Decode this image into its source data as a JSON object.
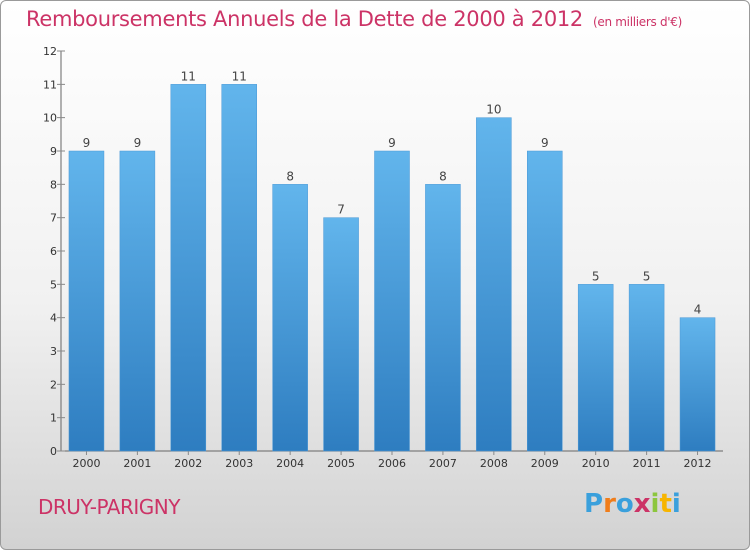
{
  "title": "Remboursements Annuels de la Dette de 2000 à 2012",
  "unit": "(en milliers d'€)",
  "city": "DRUY-PARIGNY",
  "logo": {
    "letters": [
      "P",
      "r",
      "o",
      "x",
      "i",
      "t",
      "i"
    ],
    "colors": [
      "#3aa0dc",
      "#f07d1a",
      "#3aa0dc",
      "#cc3366",
      "#8cc63e",
      "#f7b500",
      "#3aa0dc"
    ]
  },
  "colors": {
    "bar_light": "#61b4ec",
    "bar_dark": "#2f7fc1",
    "title": "#cc3366"
  },
  "chart_data": {
    "type": "bar",
    "categories": [
      "2000",
      "2001",
      "2002",
      "2003",
      "2004",
      "2005",
      "2006",
      "2007",
      "2008",
      "2009",
      "2010",
      "2011",
      "2012"
    ],
    "values": [
      9,
      9,
      11,
      11,
      8,
      7,
      9,
      8,
      10,
      9,
      5,
      5,
      4
    ],
    "ylim": [
      0,
      12
    ],
    "yticks": [
      0,
      1,
      2,
      3,
      4,
      5,
      6,
      7,
      8,
      9,
      10,
      11,
      12
    ],
    "grid": false,
    "data_labels": true
  }
}
